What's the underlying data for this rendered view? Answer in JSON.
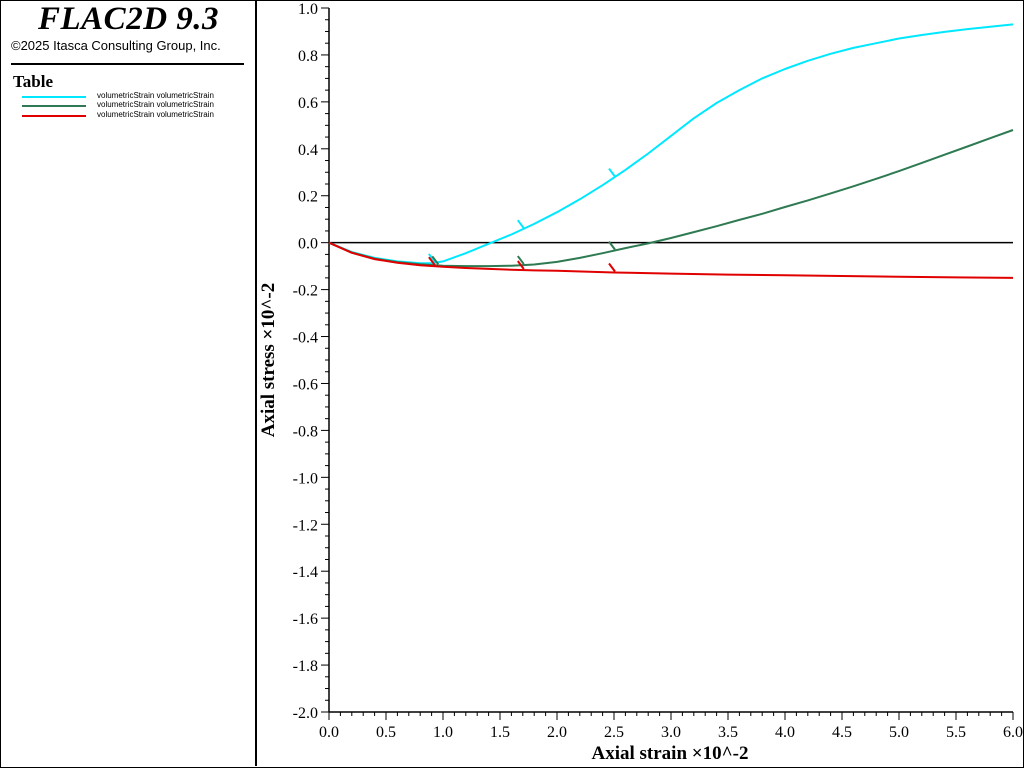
{
  "app": {
    "title": "FLAC2D 9.3",
    "copyright": "©2025 Itasca Consulting Group, Inc."
  },
  "legend": {
    "title": "Table",
    "items": [
      {
        "label": "volumetricStrain volumetricStrain",
        "color": "#00e8ff"
      },
      {
        "label": "volumetricStrain volumetricStrain",
        "color": "#2e7a52"
      },
      {
        "label": "volumetricStrain volumetricStrain",
        "color": "#e00000"
      }
    ]
  },
  "chart_data": {
    "type": "line",
    "title": "",
    "xlabel": "Axial strain ×10^-2",
    "ylabel": "Axial stress ×10^-2",
    "xlim": [
      0,
      6
    ],
    "ylim": [
      -2,
      1
    ],
    "x_ticks": [
      0.0,
      0.5,
      1.0,
      1.5,
      2.0,
      2.5,
      3.0,
      3.5,
      4.0,
      4.5,
      5.0,
      5.5,
      6.0
    ],
    "x_tick_labels": [
      "0.0",
      "0.5",
      "1.0",
      "1.5",
      "2.0",
      "2.5",
      "3.0",
      "3.5",
      "4.0",
      "4.5",
      "5.0",
      "5.5",
      "6.0"
    ],
    "y_ticks": [
      1.0,
      0.8,
      0.6,
      0.4,
      0.2,
      0.0,
      -0.2,
      -0.4,
      -0.6,
      -0.8,
      -1.0,
      -1.2,
      -1.4,
      -1.6,
      -1.8,
      -2.0
    ],
    "y_tick_labels": [
      "1.0",
      "0.8",
      "0.6",
      "0.4",
      "0.2",
      "0.0",
      "-0.2",
      "-0.4",
      "-0.6",
      "-0.8",
      "-1.0",
      "-1.2",
      "-1.4",
      "-1.6",
      "-1.8",
      "-2.0"
    ],
    "zero_line": 0,
    "series": [
      {
        "color": "#00e8ff",
        "x": [
          0,
          0.2,
          0.4,
          0.6,
          0.8,
          0.9,
          1.0,
          1.2,
          1.4,
          1.6,
          1.8,
          2.0,
          2.2,
          2.4,
          2.6,
          2.8,
          3.0,
          3.2,
          3.4,
          3.6,
          3.8,
          4.0,
          4.2,
          4.4,
          4.6,
          4.8,
          5.0,
          5.2,
          5.4,
          5.6,
          5.8,
          6.0
        ],
        "y": [
          0,
          -0.04,
          -0.065,
          -0.08,
          -0.088,
          -0.088,
          -0.08,
          -0.045,
          -0.005,
          0.035,
          0.08,
          0.13,
          0.185,
          0.245,
          0.31,
          0.38,
          0.455,
          0.53,
          0.595,
          0.65,
          0.7,
          0.74,
          0.775,
          0.805,
          0.83,
          0.85,
          0.87,
          0.885,
          0.898,
          0.91,
          0.92,
          0.93
        ],
        "markers": [
          0.92,
          1.7,
          2.5
        ]
      },
      {
        "color": "#2e7a52",
        "x": [
          0,
          0.2,
          0.4,
          0.6,
          0.8,
          1.0,
          1.2,
          1.4,
          1.6,
          1.8,
          2.0,
          2.2,
          2.4,
          2.6,
          2.8,
          3.0,
          3.2,
          3.4,
          3.6,
          3.8,
          4.0,
          4.2,
          4.4,
          4.6,
          4.8,
          5.0,
          5.2,
          5.4,
          5.6,
          5.8,
          6.0
        ],
        "y": [
          0,
          -0.042,
          -0.068,
          -0.083,
          -0.092,
          -0.098,
          -0.1,
          -0.1,
          -0.098,
          -0.093,
          -0.082,
          -0.065,
          -0.045,
          -0.023,
          -0.003,
          0.02,
          0.045,
          0.07,
          0.097,
          0.123,
          0.152,
          0.18,
          0.21,
          0.24,
          0.272,
          0.305,
          0.34,
          0.375,
          0.41,
          0.445,
          0.48
        ],
        "markers": [
          0.95,
          1.7,
          2.5
        ]
      },
      {
        "color": "#e00000",
        "x": [
          0,
          0.2,
          0.4,
          0.6,
          0.8,
          1.0,
          1.2,
          1.4,
          1.6,
          1.8,
          2.0,
          2.5,
          3.0,
          3.5,
          4.0,
          4.5,
          5.0,
          5.5,
          6.0
        ],
        "y": [
          0,
          -0.043,
          -0.07,
          -0.086,
          -0.096,
          -0.103,
          -0.108,
          -0.112,
          -0.115,
          -0.118,
          -0.12,
          -0.127,
          -0.132,
          -0.136,
          -0.139,
          -0.142,
          -0.145,
          -0.148,
          -0.15
        ],
        "markers": [
          0.92,
          1.7,
          2.5
        ]
      }
    ]
  }
}
